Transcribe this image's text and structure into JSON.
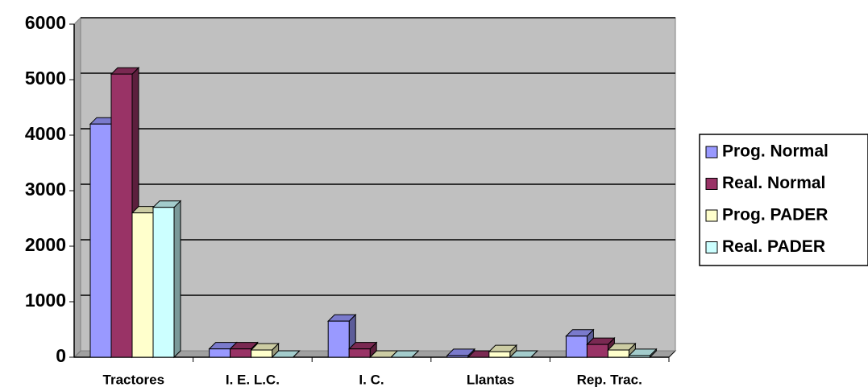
{
  "chart_data": {
    "type": "bar3d",
    "categories": [
      "Tractores",
      "I. E. L.C.",
      "I. C.",
      "Llantas",
      "Rep. Trac."
    ],
    "series": [
      {
        "name": "Prog. Normal",
        "color": "#9999ff",
        "values": [
          4200,
          150,
          650,
          30,
          380
        ]
      },
      {
        "name": "Real. Normal",
        "color": "#993366",
        "values": [
          5100,
          150,
          150,
          0,
          230
        ]
      },
      {
        "name": "Prog. PADER",
        "color": "#ffffcc",
        "values": [
          2600,
          130,
          0,
          100,
          130
        ]
      },
      {
        "name": "Real. PADER",
        "color": "#ccffff",
        "values": [
          2700,
          0,
          0,
          0,
          30
        ]
      }
    ],
    "ylim": [
      0,
      6000
    ],
    "yticks": [
      0,
      1000,
      2000,
      3000,
      4000,
      5000,
      6000
    ],
    "grid": true
  }
}
